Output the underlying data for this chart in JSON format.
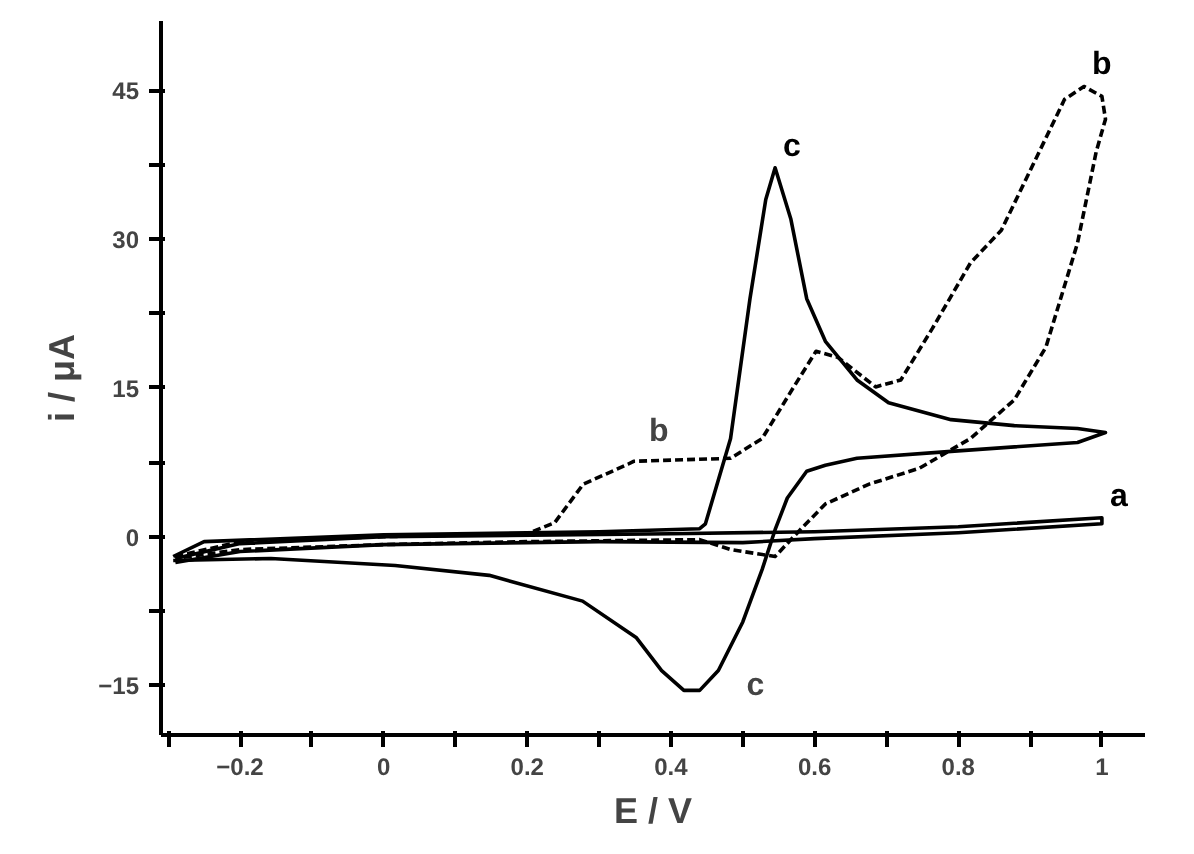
{
  "chart_data": {
    "type": "line",
    "xlabel": "E / V",
    "ylabel": "i / μA",
    "xlim": [
      -0.31,
      1.06
    ],
    "ylim": [
      -20,
      52
    ],
    "xticks": [
      {
        "value": -0.3,
        "label": null
      },
      -0.2,
      {
        "value": -0.1,
        "label": null
      },
      0.0,
      {
        "value": 0.1,
        "label": null
      },
      0.2,
      {
        "value": 0.3,
        "label": null
      },
      0.4,
      {
        "value": 0.5,
        "label": null
      },
      0.6,
      {
        "value": 0.7,
        "label": null
      },
      0.8,
      {
        "value": 0.9,
        "label": null
      },
      1.0
    ],
    "yticks": [
      -15,
      {
        "value": -7.5,
        "label": null
      },
      0,
      {
        "value": 7.5,
        "label": null
      },
      15,
      {
        "value": 22.5,
        "label": null
      },
      30,
      {
        "value": 37.5,
        "label": null
      },
      45
    ],
    "grid": false,
    "series": [
      {
        "name": "a",
        "color": "#000000",
        "line_style": "solid",
        "x": [
          -0.29,
          -0.2,
          0.0,
          0.4,
          0.6,
          0.8,
          1.0,
          1.0,
          0.8,
          0.6,
          0.5,
          0.3,
          0.0,
          -0.2,
          -0.29
        ],
        "values": [
          -2.2,
          -0.7,
          0.0,
          0.3,
          0.5,
          1.0,
          1.9,
          1.3,
          0.4,
          -0.2,
          -0.6,
          -0.5,
          -0.8,
          -1.5,
          -2.6
        ]
      },
      {
        "name": "b",
        "color": "#000000",
        "line_style": "dashed",
        "x": [
          -0.29,
          -0.2,
          0.0,
          0.2,
          0.238,
          0.278,
          0.34,
          0.348,
          0.483,
          0.527,
          0.571,
          0.602,
          0.632,
          0.685,
          0.72,
          0.764,
          0.817,
          0.86,
          0.904,
          0.948,
          0.975,
          1.0,
          1.005,
          0.992,
          0.966,
          0.922,
          0.878,
          0.817,
          0.746,
          0.676,
          0.615,
          0.58,
          0.545,
          0.483,
          0.44,
          0.2,
          0.0,
          -0.2,
          -0.29
        ],
        "values": [
          -2.0,
          -0.5,
          0.0,
          0.3,
          1.4,
          5.3,
          7.3,
          7.6,
          7.9,
          9.9,
          15.1,
          18.7,
          18.1,
          15.1,
          15.8,
          21.0,
          27.6,
          30.9,
          37.5,
          44.1,
          45.4,
          44.4,
          42.1,
          38.8,
          29.6,
          19.1,
          13.8,
          9.9,
          6.9,
          5.3,
          3.3,
          0.7,
          -2.0,
          -1.3,
          -0.3,
          -0.5,
          -0.8,
          -1.3,
          -2.2
        ]
      },
      {
        "name": "c",
        "color": "#000000",
        "line_style": "solid",
        "x": [
          -0.293,
          -0.25,
          0.0,
          0.3,
          0.44,
          0.448,
          0.483,
          0.51,
          0.532,
          0.545,
          0.567,
          0.589,
          0.615,
          0.659,
          0.703,
          0.79,
          0.878,
          0.966,
          1.005,
          0.966,
          0.79,
          0.659,
          0.615,
          0.589,
          0.562,
          0.545,
          0.527,
          0.5,
          0.466,
          0.44,
          0.418,
          0.387,
          0.352,
          0.277,
          0.147,
          0.016,
          -0.157,
          -0.293
        ],
        "values": [
          -2.0,
          -0.5,
          0.2,
          0.5,
          0.8,
          1.3,
          9.9,
          24.0,
          34.0,
          37.2,
          32.0,
          24.0,
          19.7,
          15.8,
          13.5,
          11.8,
          11.2,
          10.9,
          10.5,
          9.5,
          8.6,
          7.9,
          7.2,
          6.6,
          3.9,
          0.7,
          -3.3,
          -8.6,
          -13.5,
          -15.5,
          -15.5,
          -13.5,
          -10.2,
          -6.5,
          -3.9,
          -2.9,
          -2.2,
          -2.4
        ]
      }
    ],
    "annotations": [
      "b",
      "c"
    ]
  }
}
